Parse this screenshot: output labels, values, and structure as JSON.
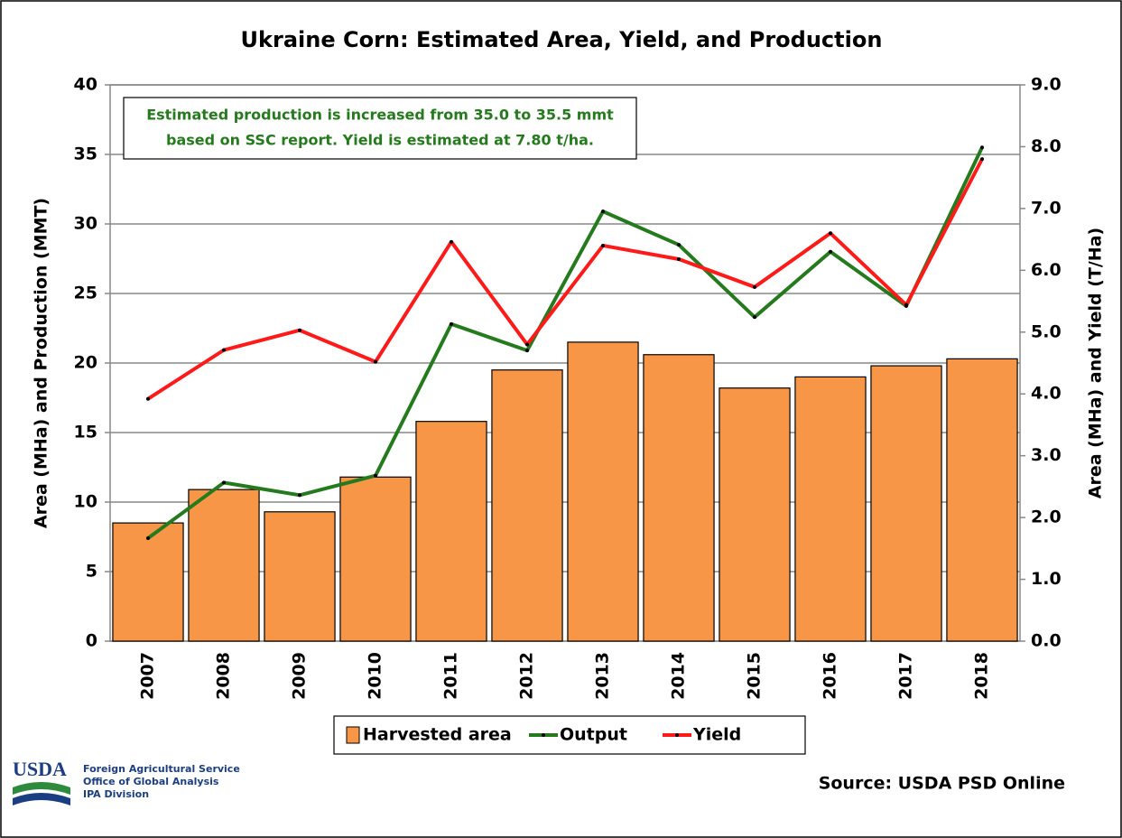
{
  "chart_data": {
    "type": "bar_line",
    "title": "Ukraine Corn: Estimated Area, Yield, and Production",
    "annotation": [
      "Estimated production is increased from 35.0 to 35.5  mmt",
      "based on SSC report.  Yield is estimated at 7.80 t/ha."
    ],
    "ylabel": "Area (MHa) and Production (MMT)",
    "y2label": "Area (MHa) and Yield (T/Ha)",
    "categories": [
      "2007",
      "2008",
      "2009",
      "2010",
      "2011",
      "2012",
      "2013",
      "2014",
      "2015",
      "2016",
      "2017",
      "2018"
    ],
    "series": [
      {
        "name": "Harvested area",
        "type": "bar",
        "color": "#f79646",
        "values": [
          8.5,
          10.9,
          9.3,
          11.8,
          15.8,
          19.5,
          21.5,
          20.6,
          18.2,
          19.0,
          19.8,
          20.3
        ]
      },
      {
        "name": "Output",
        "type": "line",
        "color": "#267a1e",
        "values": [
          7.4,
          11.4,
          10.5,
          11.9,
          22.8,
          20.9,
          30.9,
          28.5,
          23.3,
          28.0,
          24.1,
          35.5
        ]
      },
      {
        "name": "Yield",
        "type": "line",
        "color": "#ff1a1a",
        "axis": "y2",
        "values": [
          3.92,
          4.71,
          5.03,
          4.52,
          6.46,
          4.8,
          6.4,
          6.18,
          5.73,
          6.6,
          5.44,
          7.8
        ]
      }
    ],
    "ylim": [
      0,
      40
    ],
    "yticks": [
      0,
      5,
      10,
      15,
      20,
      25,
      30,
      35,
      40
    ],
    "y2lim": [
      0,
      9
    ],
    "y2ticks": [
      {
        "value": 0,
        "label": "0.0"
      },
      {
        "value": 1,
        "label": "1.0"
      },
      {
        "value": 2,
        "label": "2.0"
      },
      {
        "value": 3,
        "label": "3.0"
      },
      {
        "value": 4,
        "label": "4.0"
      },
      {
        "value": 5,
        "label": "5.0"
      },
      {
        "value": 6,
        "label": "6.0"
      },
      {
        "value": 7,
        "label": "7.0"
      },
      {
        "value": 8,
        "label": "8.0"
      },
      {
        "value": 9,
        "label": "9.0"
      }
    ],
    "grid": true,
    "legend": "bottom",
    "source": "Source: USDA PSD Online"
  },
  "logo": {
    "mark": "USDA",
    "lines": [
      "Foreign Agricultural Service",
      "Office of Global Analysis",
      "IPA Division"
    ]
  }
}
